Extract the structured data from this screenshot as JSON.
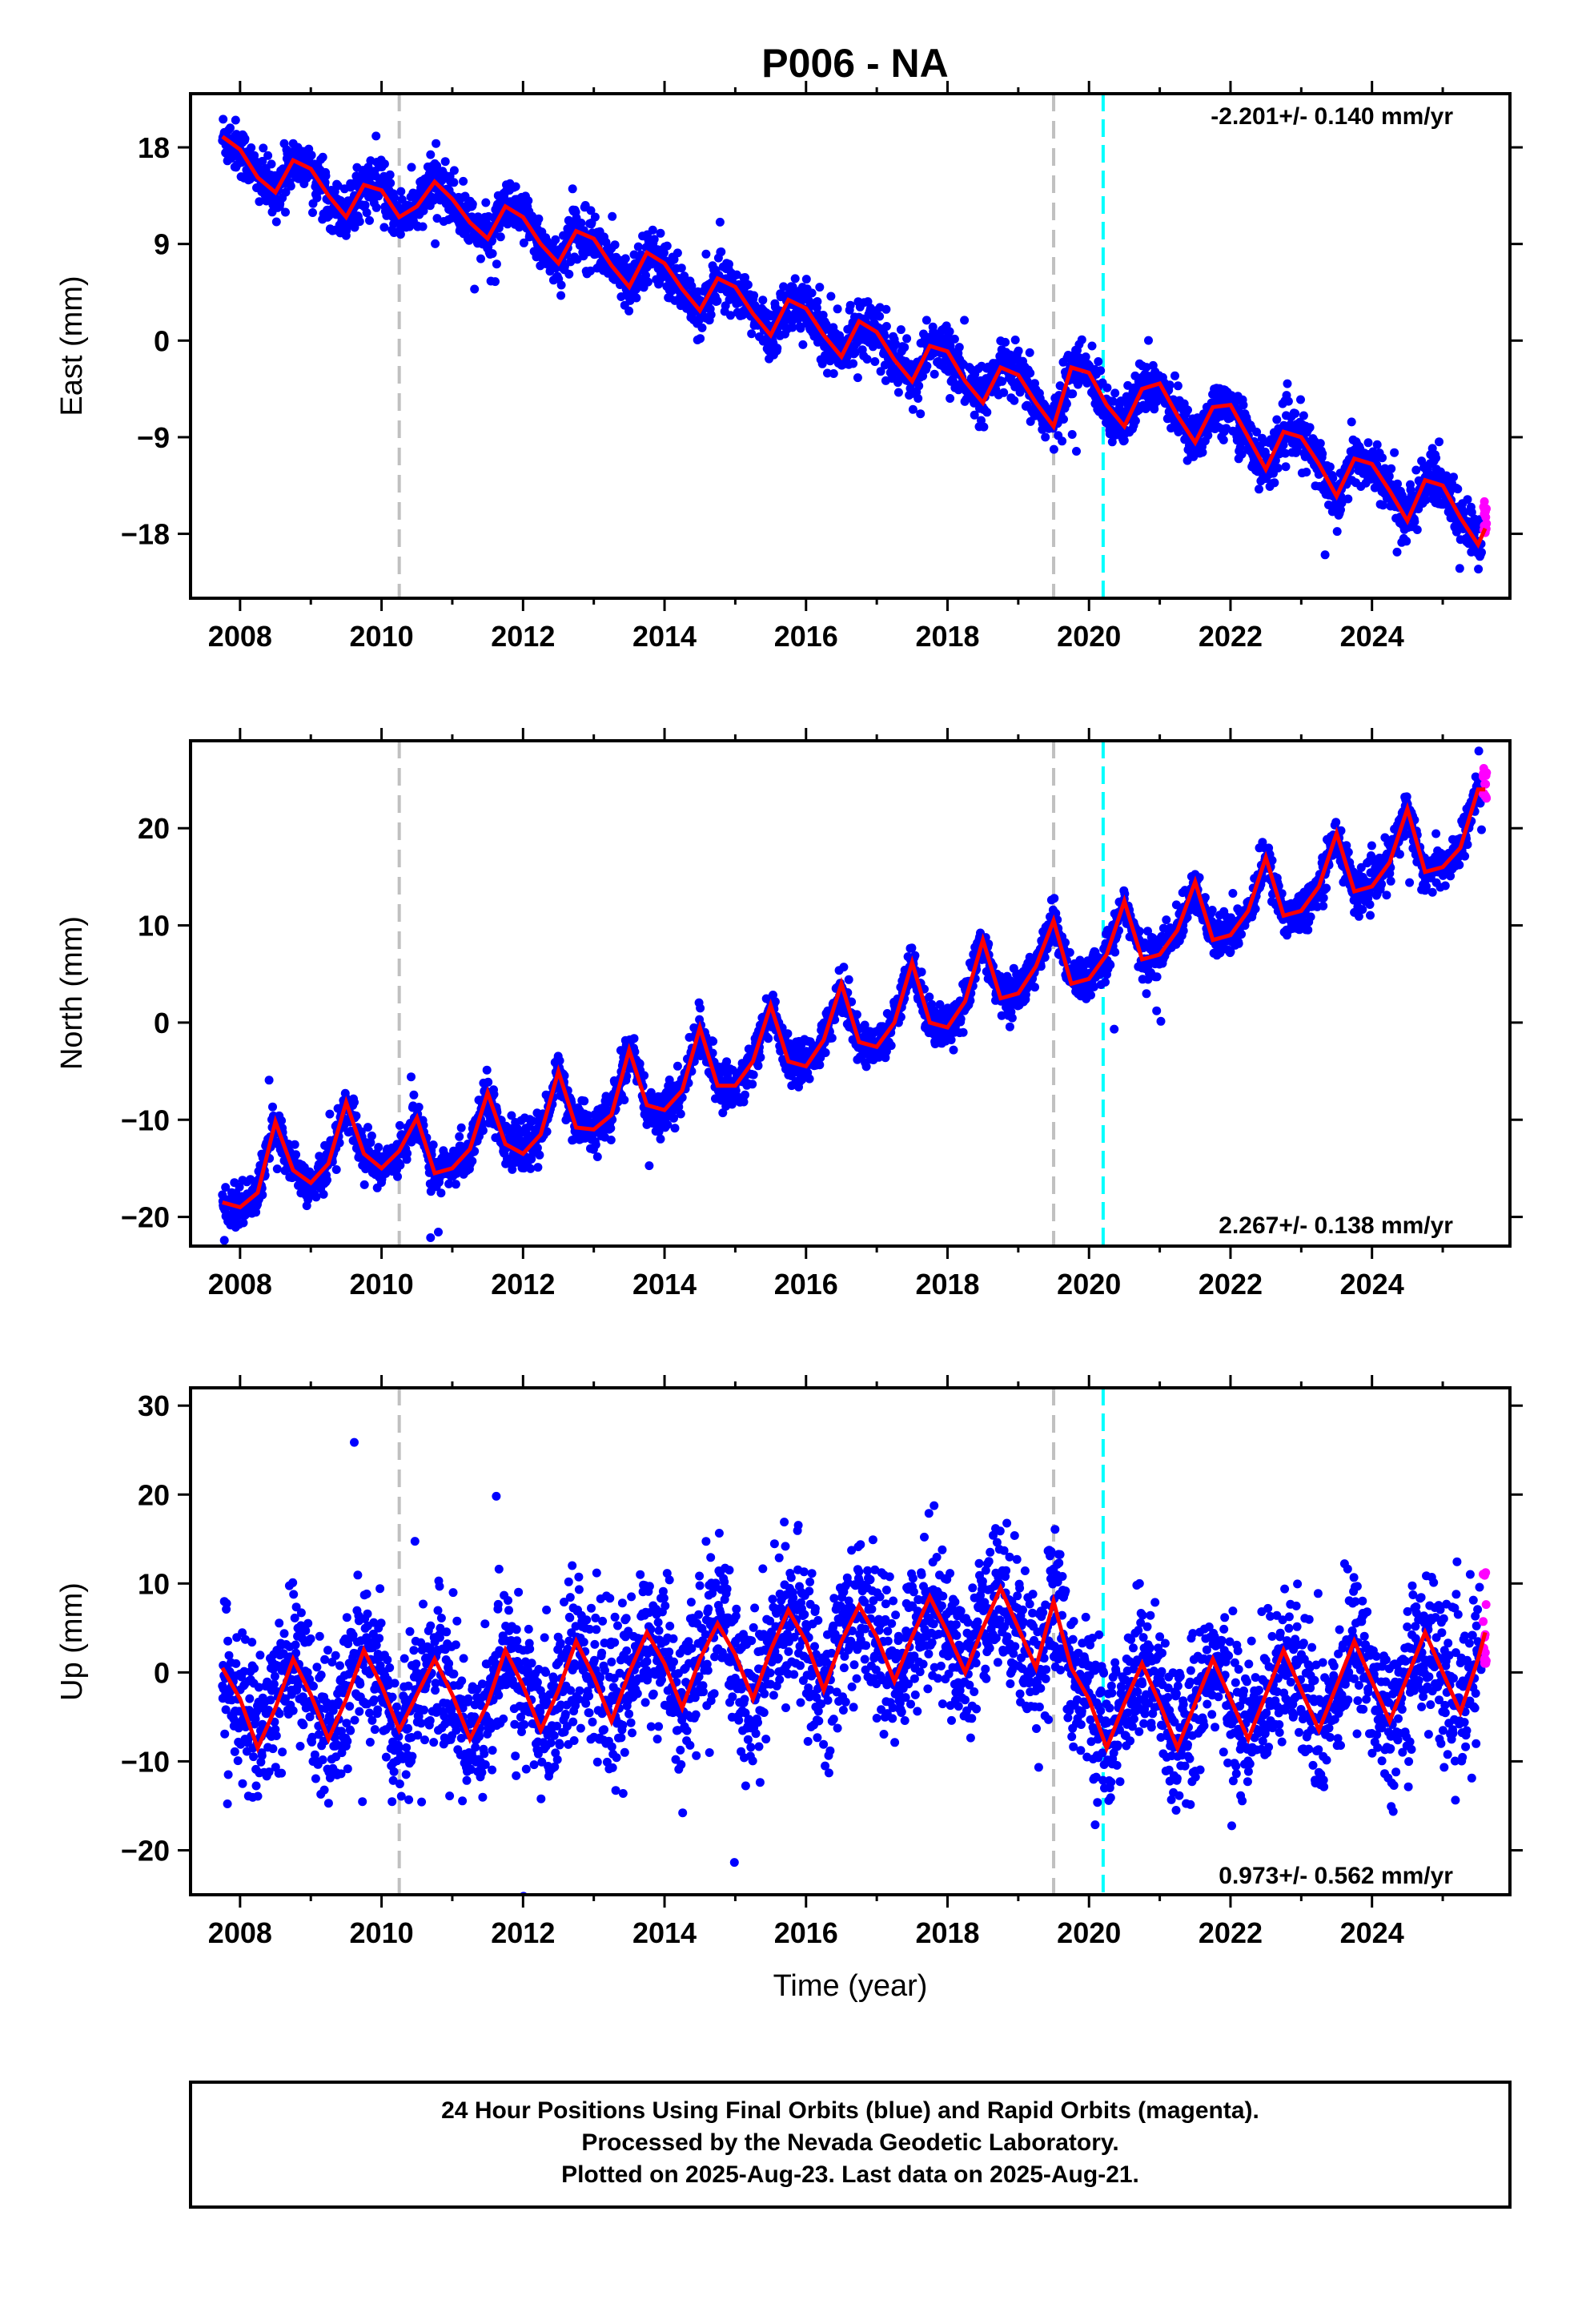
{
  "colors": {
    "final_orbits": "#0000ff",
    "rapid_orbits": "#ff00ff",
    "model": "#ff0000",
    "equipment_change": "#c0c0c0",
    "earthquake": "#00ffff"
  },
  "footer": {
    "line1": "24 Hour Positions Using Final Orbits (blue) and Rapid Orbits (magenta).",
    "line2": "Processed by the Nevada Geodetic Laboratory.",
    "line3": "Plotted on 2025-Aug-23. Last data on 2025-Aug-21."
  },
  "chart_data": [
    {
      "type": "scatter",
      "title": "P006 - NA",
      "ylabel": "East (mm)",
      "xlabel": "",
      "xlim": [
        2007.3,
        2025.95
      ],
      "ylim": [
        -24,
        23
      ],
      "xticks": [
        2008,
        2010,
        2012,
        2014,
        2016,
        2018,
        2020,
        2022,
        2024
      ],
      "yticks": [
        18,
        9,
        0,
        -9,
        -18
      ],
      "ytick_labels": [
        "18",
        "9",
        "0",
        "-9",
        "-18"
      ],
      "rate_label": "-2.201+/- 0.140 mm/yr",
      "rate_position": "top-right",
      "vlines_gray": [
        2010.25,
        2019.5
      ],
      "vlines_cyan": [
        2020.2
      ],
      "model": {
        "x": [
          2007.75,
          2008.0,
          2008.25,
          2008.5,
          2008.75,
          2009.0,
          2009.25,
          2009.5,
          2009.75,
          2010.0,
          2010.25,
          2010.5,
          2010.75,
          2011.0,
          2011.25,
          2011.5,
          2011.75,
          2012.0,
          2012.25,
          2012.5,
          2012.75,
          2013.0,
          2013.25,
          2013.5,
          2013.75,
          2014.0,
          2014.25,
          2014.5,
          2014.75,
          2015.0,
          2015.25,
          2015.5,
          2015.75,
          2016.0,
          2016.25,
          2016.5,
          2016.75,
          2017.0,
          2017.25,
          2017.5,
          2017.75,
          2018.0,
          2018.25,
          2018.5,
          2018.75,
          2019.0,
          2019.25,
          2019.5,
          2019.75,
          2020.0,
          2020.25,
          2020.5,
          2020.75,
          2021.0,
          2021.25,
          2021.5,
          2021.75,
          2022.0,
          2022.25,
          2022.5,
          2022.75,
          2023.0,
          2023.25,
          2023.5,
          2023.75,
          2024.0,
          2024.25,
          2024.5,
          2024.75,
          2025.0,
          2025.25,
          2025.5,
          2025.6
        ],
        "y": [
          19.0,
          17.8,
          15.2,
          13.8,
          16.8,
          16.0,
          13.5,
          11.5,
          14.5,
          14.0,
          11.5,
          12.5,
          14.8,
          13.2,
          11.0,
          9.5,
          12.5,
          11.5,
          9.0,
          7.2,
          10.2,
          9.5,
          7.0,
          5.0,
          8.2,
          7.2,
          4.8,
          2.8,
          5.8,
          5.0,
          2.5,
          0.5,
          3.8,
          3.0,
          0.5,
          -1.5,
          1.8,
          0.8,
          -1.8,
          -3.8,
          -0.5,
          -1.0,
          -3.8,
          -5.8,
          -2.5,
          -3.2,
          -5.8,
          -8.0,
          -2.5,
          -3.0,
          -6.0,
          -8.0,
          -4.5,
          -4.0,
          -7.0,
          -9.5,
          -6.2,
          -6.0,
          -9.0,
          -12.0,
          -8.5,
          -9.0,
          -11.5,
          -14.5,
          -11.0,
          -11.5,
          -14.0,
          -16.8,
          -13.0,
          -13.5,
          -16.5,
          -19.0,
          -17.5
        ]
      }
    },
    {
      "type": "scatter",
      "title": "",
      "ylabel": "North (mm)",
      "xlabel": "",
      "xlim": [
        2007.3,
        2025.95
      ],
      "ylim": [
        -23,
        29
      ],
      "xticks": [
        2008,
        2010,
        2012,
        2014,
        2016,
        2018,
        2020,
        2022,
        2024
      ],
      "yticks": [
        20,
        10,
        0,
        -10,
        -20
      ],
      "ytick_labels": [
        "20",
        "10",
        "0",
        "-10",
        "-20"
      ],
      "rate_label": "2.267+/- 0.138 mm/yr",
      "rate_position": "bottom-right",
      "vlines_gray": [
        2010.25,
        2019.5
      ],
      "vlines_cyan": [
        2020.2
      ],
      "model": {
        "x": [
          2007.75,
          2008.0,
          2008.25,
          2008.5,
          2008.75,
          2009.0,
          2009.25,
          2009.5,
          2009.75,
          2010.0,
          2010.25,
          2010.5,
          2010.75,
          2011.0,
          2011.25,
          2011.5,
          2011.75,
          2012.0,
          2012.25,
          2012.5,
          2012.75,
          2013.0,
          2013.25,
          2013.5,
          2013.75,
          2014.0,
          2014.25,
          2014.5,
          2014.75,
          2015.0,
          2015.25,
          2015.5,
          2015.75,
          2016.0,
          2016.25,
          2016.5,
          2016.75,
          2017.0,
          2017.25,
          2017.5,
          2017.75,
          2018.0,
          2018.25,
          2018.5,
          2018.75,
          2019.0,
          2019.25,
          2019.5,
          2019.75,
          2020.0,
          2020.25,
          2020.5,
          2020.75,
          2021.0,
          2021.25,
          2021.5,
          2021.75,
          2022.0,
          2022.25,
          2022.5,
          2022.75,
          2023.0,
          2023.25,
          2023.5,
          2023.75,
          2024.0,
          2024.25,
          2024.5,
          2024.75,
          2025.0,
          2025.25,
          2025.5,
          2025.6
        ],
        "y": [
          -18.5,
          -19.0,
          -17.5,
          -10.2,
          -15.2,
          -16.5,
          -14.5,
          -8.2,
          -13.5,
          -15.0,
          -13.2,
          -9.8,
          -15.5,
          -15.0,
          -13.0,
          -7.2,
          -12.5,
          -13.5,
          -11.5,
          -5.0,
          -10.8,
          -11.0,
          -9.5,
          -2.8,
          -8.5,
          -9.0,
          -7.0,
          -0.5,
          -6.5,
          -6.5,
          -4.0,
          1.8,
          -4.0,
          -4.5,
          -1.8,
          4.0,
          -2.0,
          -2.5,
          0.0,
          6.2,
          0.0,
          -0.5,
          2.2,
          8.5,
          2.5,
          3.0,
          5.8,
          10.5,
          4.0,
          4.5,
          7.0,
          12.5,
          6.5,
          7.0,
          9.5,
          14.5,
          8.5,
          9.0,
          11.5,
          17.0,
          11.0,
          11.5,
          14.0,
          19.5,
          13.5,
          14.0,
          16.5,
          22.0,
          15.5,
          16.0,
          18.0,
          24.0,
          24.0
        ]
      }
    },
    {
      "type": "scatter",
      "title": "",
      "ylabel": "Up (mm)",
      "xlabel": "Time (year)",
      "xlim": [
        2007.3,
        2025.95
      ],
      "ylim": [
        -25,
        32
      ],
      "xticks": [
        2008,
        2010,
        2012,
        2014,
        2016,
        2018,
        2020,
        2022,
        2024
      ],
      "yticks": [
        30,
        20,
        10,
        0,
        -10,
        -20
      ],
      "ytick_labels": [
        "30",
        "20",
        "10",
        "0",
        "-10",
        "-20"
      ],
      "rate_label": "0.973+/- 0.562 mm/yr",
      "rate_position": "bottom-right",
      "vlines_gray": [
        2010.25,
        2019.5
      ],
      "vlines_cyan": [
        2020.2
      ],
      "model": {
        "x": [
          2007.75,
          2008.0,
          2008.25,
          2008.5,
          2008.75,
          2009.0,
          2009.25,
          2009.5,
          2009.75,
          2010.0,
          2010.25,
          2010.5,
          2010.75,
          2011.0,
          2011.25,
          2011.5,
          2011.75,
          2012.0,
          2012.25,
          2012.5,
          2012.75,
          2013.0,
          2013.25,
          2013.5,
          2013.75,
          2014.0,
          2014.25,
          2014.5,
          2014.75,
          2015.0,
          2015.25,
          2015.5,
          2015.75,
          2016.0,
          2016.25,
          2016.5,
          2016.75,
          2017.0,
          2017.25,
          2017.5,
          2017.75,
          2018.0,
          2018.25,
          2018.5,
          2018.75,
          2019.0,
          2019.25,
          2019.5,
          2019.75,
          2020.0,
          2020.25,
          2020.5,
          2020.75,
          2021.0,
          2021.25,
          2021.5,
          2021.75,
          2022.0,
          2022.25,
          2022.5,
          2022.75,
          2023.0,
          2023.25,
          2023.5,
          2023.75,
          2024.0,
          2024.25,
          2024.5,
          2024.75,
          2025.0,
          2025.25,
          2025.5,
          2025.6
        ],
        "y": [
          0.5,
          -3.0,
          -8.5,
          -4.0,
          1.5,
          -2.5,
          -7.5,
          -3.0,
          2.5,
          -1.5,
          -6.5,
          -2.5,
          1.5,
          -2.5,
          -7.5,
          -3.5,
          2.5,
          -1.5,
          -6.5,
          -2.0,
          3.5,
          -0.5,
          -5.5,
          0.0,
          4.5,
          1.0,
          -4.0,
          1.5,
          5.5,
          2.0,
          -3.0,
          2.5,
          7.0,
          3.5,
          -2.0,
          3.5,
          7.5,
          4.0,
          -1.0,
          4.0,
          8.5,
          4.5,
          0.0,
          5.0,
          9.5,
          5.0,
          0.5,
          8.0,
          0.5,
          -3.0,
          -8.5,
          -3.5,
          1.0,
          -3.5,
          -8.5,
          -3.5,
          1.5,
          -3.0,
          -7.5,
          -2.5,
          2.5,
          -2.0,
          -6.5,
          -1.5,
          3.5,
          -1.0,
          -5.5,
          -0.5,
          4.5,
          0.0,
          -4.5,
          1.5,
          4.5
        ]
      }
    }
  ]
}
